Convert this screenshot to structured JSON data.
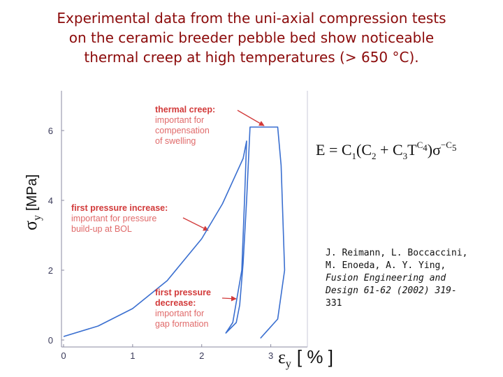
{
  "chart_data": {
    "type": "line",
    "title_lines": [
      "Experimental data from the uni-axial compression tests",
      "on the ceramic breeder pebble bed show noticeable",
      "thermal creep at high temperatures (> 650 °C)."
    ],
    "x_label": {
      "symbol": "ε",
      "sub": "y",
      "unit": "[ % ]"
    },
    "y_label": {
      "symbol": "σ",
      "sub": "y",
      "unit": "[MPa]"
    },
    "xlim": [
      -0.03,
      3.53
    ],
    "ylim": [
      -0.2,
      7.14
    ],
    "xticks": [
      0,
      1,
      2,
      3
    ],
    "yticks": [
      0,
      2,
      4,
      6
    ],
    "series": [
      {
        "color": "#3a6fd0",
        "x": [
          0,
          0.5,
          1,
          1.5,
          2,
          2.3,
          2.6,
          2.65,
          2.62,
          2.58,
          2.45,
          2.35,
          2.5,
          2.55,
          2.6,
          2.65,
          2.7,
          3.1,
          3.15,
          3.2,
          3.1,
          2.85
        ],
        "values": [
          0.1,
          0.4,
          0.9,
          1.7,
          2.9,
          3.9,
          5.2,
          5.7,
          4,
          2,
          0.5,
          0.2,
          0.5,
          1,
          2.2,
          4,
          6.1,
          6.1,
          5,
          2,
          0.6,
          0.05
        ]
      }
    ],
    "annotations": [
      {
        "title": [
          "thermal creep:"
        ],
        "lines": [
          "important for",
          "compensation",
          "of swelling"
        ]
      },
      {
        "title": [
          "first pressure increase:"
        ],
        "lines": [
          "important for pressure",
          "build-up at BOL"
        ]
      },
      {
        "title": [
          "first pressure",
          "decrease:"
        ],
        "lines": [
          "important for",
          "gap formation"
        ]
      }
    ],
    "equation": [
      "E = C",
      "1",
      "(C",
      "2",
      " + C",
      "3",
      "T",
      "C",
      "4",
      ")σ",
      "−C",
      "5"
    ],
    "reference": [
      "J. Reimann, L. Boccaccini,",
      "M. Enoeda, A. Y. Ying,",
      "Fusion Engineering and",
      "Design 61-62 (2002) 319-",
      "331"
    ]
  }
}
